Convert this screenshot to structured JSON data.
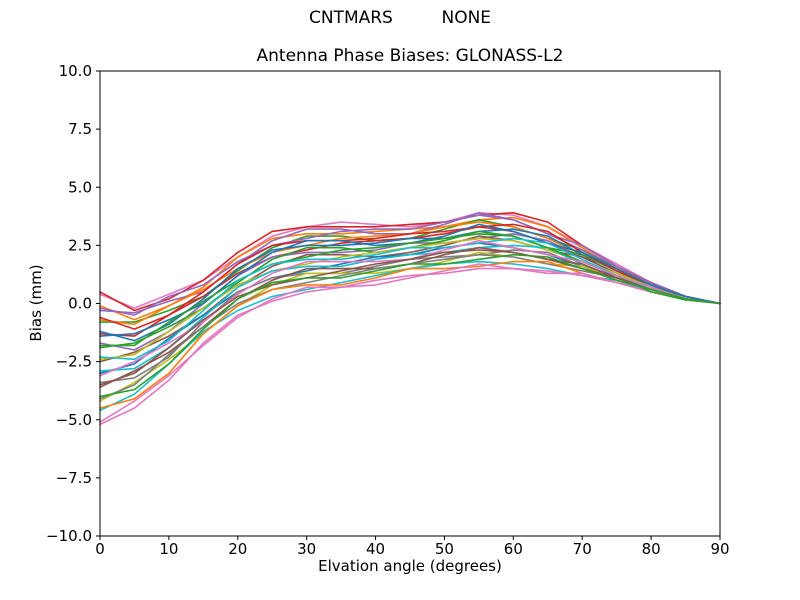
{
  "chart_data": {
    "type": "line",
    "suptitle": "CNTMARS         NONE",
    "title": "Antenna Phase Biases: GLONASS-L2",
    "xlabel": "Elvation angle (degrees)",
    "ylabel": "Bias (mm)",
    "xlim": [
      0,
      90
    ],
    "ylim": [
      -10.0,
      10.0
    ],
    "grid": false,
    "legend": "none",
    "background": "#ffffff",
    "frame_color": "#000000",
    "line_width": 1.6,
    "xticks": [
      {
        "v": 0,
        "label": "0"
      },
      {
        "v": 10,
        "label": "10"
      },
      {
        "v": 20,
        "label": "20"
      },
      {
        "v": 30,
        "label": "30"
      },
      {
        "v": 40,
        "label": "40"
      },
      {
        "v": 50,
        "label": "50"
      },
      {
        "v": 60,
        "label": "60"
      },
      {
        "v": 70,
        "label": "70"
      },
      {
        "v": 80,
        "label": "80"
      },
      {
        "v": 90,
        "label": "90"
      }
    ],
    "yticks": [
      {
        "v": 10.0,
        "label": "10.0"
      },
      {
        "v": 7.5,
        "label": "7.5"
      },
      {
        "v": 5.0,
        "label": "5.0"
      },
      {
        "v": 2.5,
        "label": "2.5"
      },
      {
        "v": 0.0,
        "label": "0.0"
      },
      {
        "v": -2.5,
        "label": "−2.5"
      },
      {
        "v": -5.0,
        "label": "−5.0"
      },
      {
        "v": -7.5,
        "label": "−7.5"
      },
      {
        "v": -10.0,
        "label": "−10.0"
      }
    ],
    "x": [
      0,
      5,
      10,
      15,
      20,
      25,
      30,
      35,
      40,
      45,
      50,
      55,
      60,
      65,
      70,
      75,
      80,
      85,
      90
    ],
    "series": [
      {
        "color": "#e377c2",
        "y": [
          0.4,
          -0.2,
          0.4,
          1.0,
          2.0,
          2.9,
          3.3,
          3.5,
          3.4,
          3.3,
          3.5,
          3.9,
          3.8,
          3.3,
          2.5,
          1.7,
          0.9,
          0.3,
          0.0
        ]
      },
      {
        "color": "#ff7f0e",
        "y": [
          -0.1,
          -0.7,
          -0.1,
          0.7,
          2.0,
          2.8,
          3.0,
          3.0,
          3.1,
          3.2,
          3.3,
          3.6,
          3.7,
          3.3,
          2.4,
          1.5,
          0.9,
          0.3,
          0.0
        ]
      },
      {
        "color": "#2ca02c",
        "y": [
          -0.8,
          -0.8,
          -0.3,
          0.3,
          1.4,
          2.4,
          2.9,
          2.9,
          2.7,
          2.8,
          3.2,
          3.6,
          3.3,
          2.8,
          2.3,
          1.5,
          0.8,
          0.3,
          0.0
        ]
      },
      {
        "color": "#d62728",
        "y": [
          -1.3,
          -1.4,
          -0.5,
          0.3,
          1.3,
          2.0,
          2.3,
          2.6,
          2.7,
          2.8,
          3.0,
          3.3,
          3.1,
          2.6,
          2.0,
          1.5,
          0.8,
          0.3,
          0.0
        ]
      },
      {
        "color": "#9467bd",
        "y": [
          -1.7,
          -2.0,
          -1.2,
          0.0,
          1.2,
          2.0,
          2.2,
          2.2,
          2.3,
          2.6,
          2.6,
          2.8,
          3.0,
          2.7,
          2.0,
          1.3,
          0.7,
          0.3,
          0.0
        ]
      },
      {
        "color": "#8c564b",
        "y": [
          -2.5,
          -2.1,
          -1.4,
          -0.5,
          0.7,
          1.6,
          2.1,
          2.1,
          2.0,
          2.2,
          2.5,
          2.9,
          2.7,
          2.3,
          2.0,
          1.3,
          0.7,
          0.2,
          0.0
        ]
      },
      {
        "color": "#1f77b4",
        "y": [
          -3.0,
          -2.6,
          -1.5,
          -0.5,
          0.5,
          1.1,
          1.4,
          1.7,
          2.0,
          2.1,
          2.4,
          2.6,
          2.4,
          2.1,
          1.6,
          1.2,
          0.7,
          0.2,
          0.0
        ]
      },
      {
        "color": "#7f7f7f",
        "y": [
          -3.4,
          -3.2,
          -2.3,
          -0.8,
          0.5,
          1.1,
          1.3,
          1.3,
          1.6,
          1.9,
          2.0,
          2.1,
          2.3,
          2.2,
          1.6,
          1.0,
          0.6,
          0.2,
          0.0
        ]
      },
      {
        "color": "#bcbd22",
        "y": [
          -4.2,
          -3.4,
          -2.4,
          -1.3,
          -0.1,
          0.8,
          1.3,
          1.3,
          1.3,
          1.5,
          1.8,
          2.2,
          2.0,
          1.7,
          1.6,
          1.1,
          0.6,
          0.2,
          0.0
        ]
      },
      {
        "color": "#17becf",
        "y": [
          -4.6,
          -3.9,
          -2.6,
          -1.2,
          -0.3,
          0.3,
          0.6,
          0.9,
          1.2,
          1.5,
          1.7,
          1.8,
          1.7,
          1.5,
          1.2,
          1.0,
          0.5,
          0.2,
          0.0
        ]
      },
      {
        "color": "#e377c2",
        "y": [
          -5.2,
          -4.5,
          -3.3,
          -1.7,
          -0.5,
          0.1,
          0.5,
          0.7,
          1.0,
          1.2,
          1.3,
          1.5,
          1.5,
          1.4,
          1.2,
          0.9,
          0.5,
          0.2,
          0.0
        ]
      },
      {
        "color": "#d62728",
        "y": [
          0.5,
          -0.3,
          0.2,
          1.0,
          2.2,
          3.1,
          3.3,
          3.3,
          3.3,
          3.4,
          3.5,
          3.8,
          3.9,
          3.5,
          2.5,
          1.6,
          0.9,
          0.3,
          0.0
        ]
      },
      {
        "color": "#9467bd",
        "y": [
          -0.3,
          -0.4,
          0.1,
          0.5,
          1.7,
          2.7,
          3.2,
          3.2,
          3.0,
          3.0,
          3.4,
          3.9,
          3.6,
          3.0,
          2.5,
          1.6,
          0.9,
          0.3,
          0.0
        ]
      },
      {
        "color": "#ff7f0e",
        "y": [
          -0.7,
          -0.9,
          -0.1,
          0.6,
          1.5,
          2.2,
          2.5,
          2.8,
          2.9,
          3.0,
          3.3,
          3.5,
          3.3,
          2.8,
          2.1,
          1.5,
          0.8,
          0.3,
          0.0
        ]
      },
      {
        "color": "#1f77b4",
        "y": [
          -1.2,
          -1.6,
          -0.9,
          0.2,
          1.5,
          2.3,
          2.5,
          2.5,
          2.6,
          2.8,
          2.8,
          3.1,
          3.2,
          2.9,
          2.1,
          1.4,
          0.8,
          0.3,
          0.0
        ]
      },
      {
        "color": "#2ca02c",
        "y": [
          -1.9,
          -1.7,
          -1.0,
          -0.2,
          0.9,
          1.9,
          2.4,
          2.4,
          2.2,
          2.4,
          2.7,
          3.1,
          2.9,
          2.4,
          2.1,
          1.4,
          0.7,
          0.3,
          0.0
        ]
      },
      {
        "color": "#bcbd22",
        "y": [
          -2.4,
          -2.2,
          -1.2,
          -0.2,
          0.8,
          1.4,
          1.7,
          2.0,
          2.2,
          2.4,
          2.6,
          2.8,
          2.7,
          2.3,
          1.8,
          1.3,
          0.7,
          0.2,
          0.0
        ]
      },
      {
        "color": "#17becf",
        "y": [
          -2.9,
          -2.8,
          -1.9,
          -0.6,
          0.7,
          1.4,
          1.6,
          1.6,
          1.9,
          2.1,
          2.2,
          2.4,
          2.5,
          2.4,
          1.7,
          1.1,
          0.7,
          0.2,
          0.0
        ]
      },
      {
        "color": "#8c564b",
        "y": [
          -3.6,
          -2.9,
          -2.1,
          -1.0,
          0.2,
          1.0,
          1.5,
          1.5,
          1.5,
          1.7,
          2.1,
          2.4,
          2.2,
          1.9,
          1.7,
          1.1,
          0.6,
          0.2,
          0.0
        ]
      },
      {
        "color": "#7f7f7f",
        "y": [
          -4.1,
          -3.5,
          -2.2,
          -1.0,
          0.0,
          0.6,
          0.9,
          1.2,
          1.5,
          1.7,
          1.9,
          2.1,
          2.0,
          1.7,
          1.4,
          1.1,
          0.6,
          0.2,
          0.0
        ]
      },
      {
        "color": "#ff7f0e",
        "y": [
          -4.5,
          -4.1,
          -3.0,
          -1.3,
          -0.1,
          0.6,
          0.8,
          0.8,
          1.1,
          1.5,
          1.5,
          1.6,
          1.8,
          1.8,
          1.3,
          0.9,
          0.5,
          0.2,
          0.0
        ]
      },
      {
        "color": "#e377c2",
        "y": [
          -5.1,
          -4.2,
          -3.1,
          -1.8,
          -0.6,
          0.2,
          0.7,
          0.7,
          0.8,
          1.1,
          1.4,
          1.7,
          1.5,
          1.3,
          1.3,
          0.9,
          0.5,
          0.2,
          0.0
        ]
      },
      {
        "color": "#9467bd",
        "y": [
          -0.2,
          -0.5,
          0.3,
          0.8,
          1.8,
          2.5,
          2.8,
          3.1,
          3.2,
          3.2,
          3.5,
          3.8,
          3.6,
          3.0,
          2.3,
          1.6,
          0.9,
          0.3,
          0.0
        ]
      },
      {
        "color": "#d62728",
        "y": [
          -0.6,
          -1.1,
          -0.5,
          0.5,
          1.7,
          2.5,
          2.7,
          2.7,
          2.8,
          3.0,
          3.1,
          3.3,
          3.4,
          3.1,
          2.2,
          1.4,
          0.8,
          0.3,
          0.0
        ]
      },
      {
        "color": "#1f77b4",
        "y": [
          -1.4,
          -1.3,
          -0.7,
          0.0,
          1.2,
          2.2,
          2.7,
          2.7,
          2.5,
          2.6,
          2.9,
          3.4,
          3.1,
          2.6,
          2.2,
          1.5,
          0.8,
          0.3,
          0.0
        ]
      },
      {
        "color": "#2ca02c",
        "y": [
          -1.8,
          -1.8,
          -0.8,
          0.1,
          1.0,
          1.7,
          2.0,
          2.3,
          2.4,
          2.6,
          2.8,
          3.0,
          2.9,
          2.4,
          1.8,
          1.2,
          0.5,
          0.15,
          0.0
        ]
      },
      {
        "color": "#17becf",
        "y": [
          -2.3,
          -2.4,
          -1.6,
          -0.3,
          1.0,
          1.7,
          1.9,
          1.9,
          2.1,
          2.4,
          2.4,
          2.6,
          2.8,
          2.6,
          1.9,
          1.2,
          0.7,
          0.2,
          0.0
        ]
      },
      {
        "color": "#e377c2",
        "y": [
          -3.1,
          -2.5,
          -1.7,
          -0.8,
          0.4,
          1.3,
          1.8,
          1.8,
          1.8,
          1.9,
          2.3,
          2.7,
          2.4,
          2.1,
          1.8,
          1.2,
          0.7,
          0.2,
          0.0
        ]
      },
      {
        "color": "#8c564b",
        "y": [
          -3.5,
          -3.0,
          -1.9,
          -0.7,
          0.3,
          0.8,
          1.1,
          1.4,
          1.7,
          1.9,
          2.2,
          2.3,
          2.2,
          1.9,
          1.5,
          1.1,
          0.6,
          0.2,
          0.0
        ]
      },
      {
        "color": "#2ca02c",
        "y": [
          -4.0,
          -3.7,
          -2.6,
          -1.1,
          0.2,
          0.9,
          1.1,
          1.1,
          1.4,
          1.7,
          1.7,
          1.9,
          2.1,
          2.0,
          1.5,
          1.0,
          0.6,
          0.2,
          0.0
        ]
      }
    ]
  }
}
